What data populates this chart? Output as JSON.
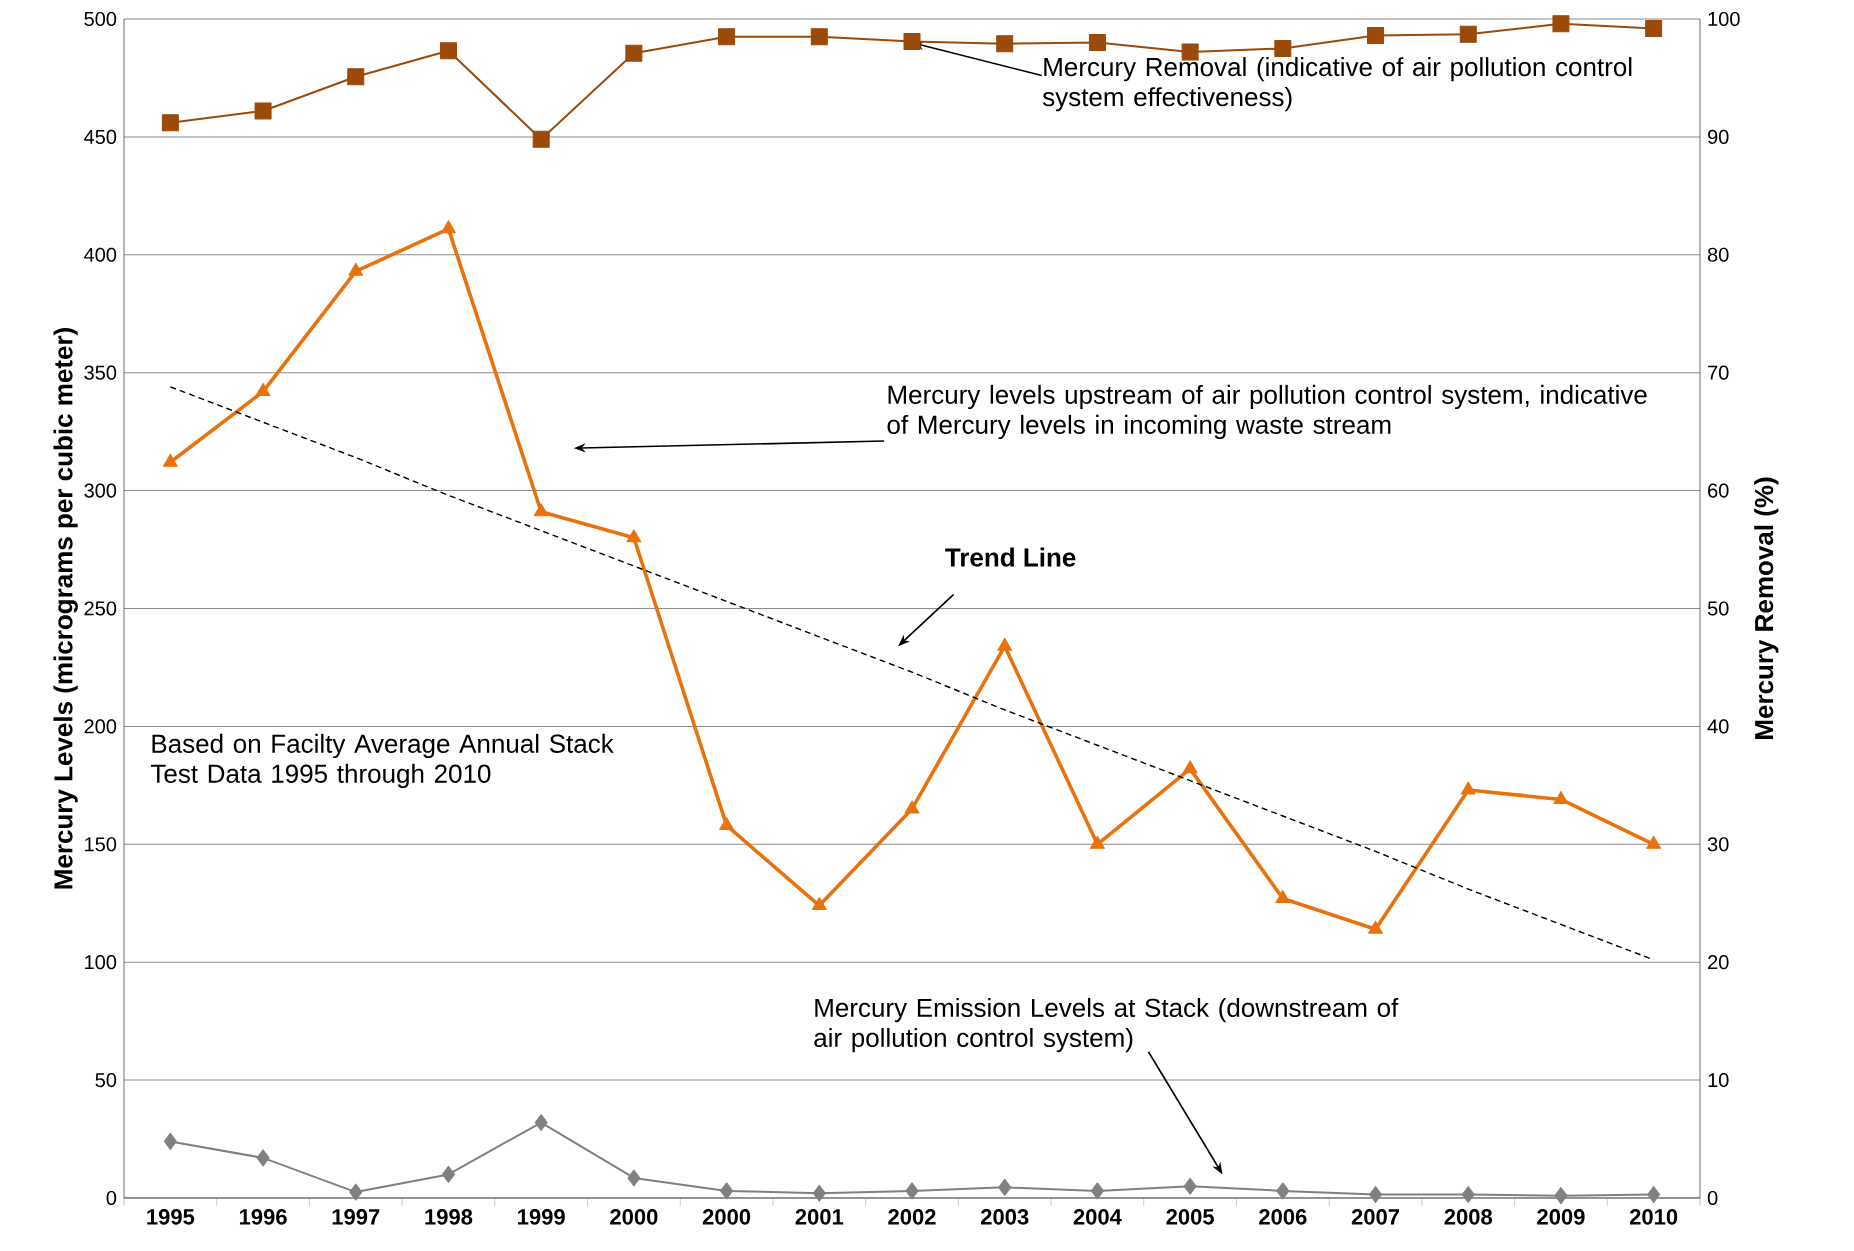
{
  "chart_data": {
    "type": "line",
    "categories": [
      "1995",
      "1996",
      "1997",
      "1998",
      "1999",
      "2000",
      "2000",
      "2001",
      "2002",
      "2003",
      "2004",
      "2005",
      "2006",
      "2007",
      "2008",
      "2009",
      "2010"
    ],
    "ylabel": "Mercury Levels (micrograms per cubic meter)",
    "y2label": "Mercury Removal (%)",
    "ylim": [
      0,
      500
    ],
    "yticks": [
      0,
      50,
      100,
      150,
      200,
      250,
      300,
      350,
      400,
      450,
      500
    ],
    "y2lim": [
      0,
      100
    ],
    "y2ticks": [
      0,
      10,
      20,
      30,
      40,
      50,
      60,
      70,
      80,
      90,
      100
    ],
    "grid": "y",
    "series": [
      {
        "color": "#9c4a0a",
        "marker": "square",
        "axis": "y2",
        "values": [
          91.2,
          92.2,
          95.1,
          97.3,
          89.8,
          97.1,
          98.5,
          98.5,
          98.1,
          97.9,
          98.0,
          97.2,
          97.5,
          98.6,
          98.7,
          99.6,
          99.2
        ]
      },
      {
        "color": "#e8730e",
        "marker": "triangle",
        "values": [
          312,
          342,
          393,
          411,
          291,
          280,
          158,
          124,
          165,
          234,
          150,
          182,
          127,
          114,
          173,
          169,
          150
        ]
      },
      {
        "color": "#808080",
        "marker": "diamond",
        "values": [
          24,
          17,
          2.5,
          10,
          32,
          8.5,
          3,
          2,
          3,
          4.5,
          3,
          5,
          3,
          1.5,
          1.5,
          1,
          1.5
        ]
      },
      {
        "type": "line",
        "color": "#000000",
        "marker": "none",
        "line_style": "dashed",
        "values": [
          344,
          329,
          314,
          298,
          283,
          268,
          253,
          238,
          223,
          207,
          192,
          177,
          162,
          147,
          131,
          116,
          101
        ]
      }
    ],
    "annotations": [
      {
        "text": "Mercury Removal (indicative of air pollution control system effectiveness)",
        "x": "2002",
        "y": 490
      },
      "Mercury levels upstream of air pollution control system, indicative of Mercury levels in incoming waste stream",
      "Trend Line",
      "Based on Facilty Average Annual Stack Test Data 1995 through 2010",
      "Mercury Emission Levels at Stack (downstream of air pollution control system)"
    ]
  }
}
